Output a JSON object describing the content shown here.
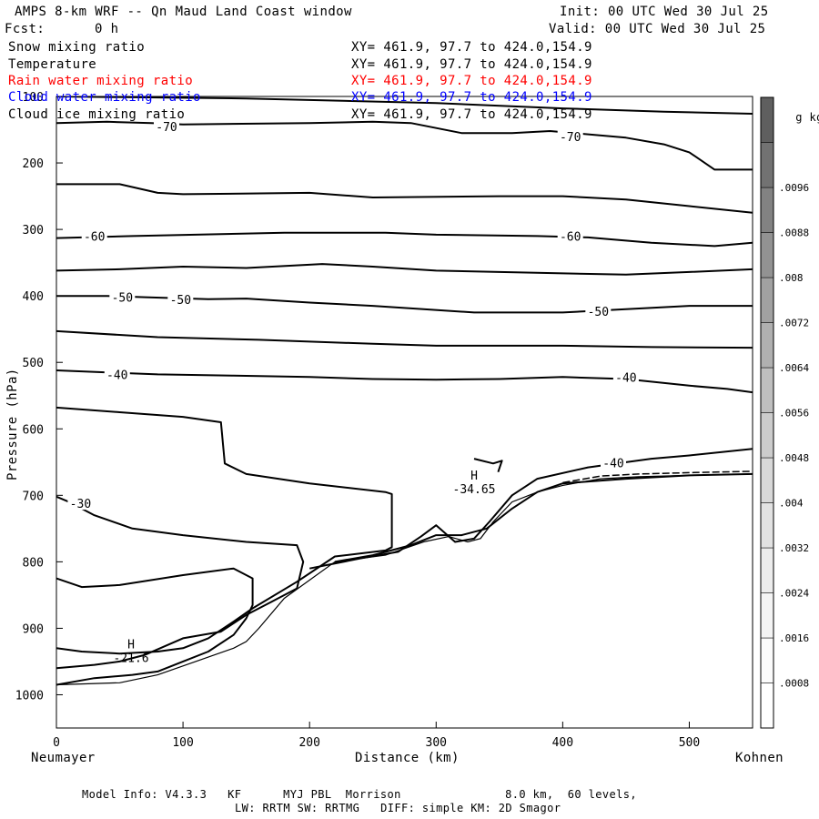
{
  "header": {
    "title": "AMPS 8-km WRF -- Qn Maud Land Coast window",
    "init": "Init: 00 UTC Wed 30 Jul 25",
    "fcst_label": "Fcst:",
    "fcst_value": "0 h",
    "valid": "Valid: 00 UTC Wed 30 Jul 25"
  },
  "fields": [
    {
      "name": "Snow mixing ratio",
      "xy": "XY= 461.9, 97.7 to 424.0,154.9",
      "color": "#000000"
    },
    {
      "name": "Temperature",
      "xy": "XY= 461.9, 97.7 to 424.0,154.9",
      "color": "#000000"
    },
    {
      "name": "Rain water mixing ratio",
      "xy": "XY= 461.9, 97.7 to 424.0,154.9",
      "color": "#ff0000"
    },
    {
      "name": "Cloud water mixing ratio",
      "xy": "XY= 461.9, 97.7 to 424.0,154.9",
      "color": "#0000ff"
    },
    {
      "name": "Cloud ice mixing ratio",
      "xy": "XY= 461.9, 97.7 to 424.0,154.9",
      "color": "#000000"
    }
  ],
  "footer": {
    "line1": "Model Info: V4.3.3   KF      MYJ PBL  Morrison               8.0 km,  60 levels,",
    "line2": "LW: RRTM SW: RRTMG   DIFF: simple KM: 2D Smagor"
  },
  "chart_data": {
    "type": "contour",
    "xlabel": "Distance (km)",
    "ylabel": "Pressure (hPa)",
    "x_left_label": "Neumayer",
    "x_right_label": "Kohnen",
    "xlim": [
      0,
      550
    ],
    "ylim": [
      1050,
      100
    ],
    "x_ticks": [
      0,
      100,
      200,
      300,
      400,
      500
    ],
    "y_ticks": [
      100,
      200,
      300,
      400,
      500,
      600,
      700,
      800,
      900,
      1000
    ],
    "colorbar": {
      "unit": "g kg",
      "unit_exp": "-1",
      "labels": [
        ".0008",
        ".0016",
        ".0024",
        ".0032",
        ".004",
        ".0048",
        ".0056",
        ".0064",
        ".0072",
        ".008",
        ".0088",
        ".0096"
      ],
      "shades": [
        "#ffffff",
        "#fbfbfb",
        "#f4f4f4",
        "#ececec",
        "#e2e2e2",
        "#d8d8d8",
        "#cccccc",
        "#bfbfbf",
        "#b0b0b0",
        "#a1a1a1",
        "#929292",
        "#828282",
        "#727272",
        "#5f5f5f"
      ]
    },
    "contour_labels": [
      {
        "text": "-70",
        "x": 87,
        "p": 145
      },
      {
        "text": "-70",
        "x": 406,
        "p": 160
      },
      {
        "text": "-60",
        "x": 30,
        "p": 310
      },
      {
        "text": "-60",
        "x": 406,
        "p": 310
      },
      {
        "text": "-50",
        "x": 52,
        "p": 402
      },
      {
        "text": "-50",
        "x": 98,
        "p": 405
      },
      {
        "text": "-50",
        "x": 428,
        "p": 423
      },
      {
        "text": "-40",
        "x": 48,
        "p": 518
      },
      {
        "text": "-40",
        "x": 450,
        "p": 522
      },
      {
        "text": "-40",
        "x": 440,
        "p": 651
      },
      {
        "text": "-30",
        "x": 19,
        "p": 712
      }
    ],
    "extrema": [
      {
        "label": "H",
        "value": "-21.6",
        "x": 59,
        "p": 937
      },
      {
        "label": "H",
        "value": "-34.65",
        "x": 330,
        "p": 683
      }
    ],
    "contour_lines": [
      {
        "level": null,
        "points": [
          [
            0,
            100
          ],
          [
            150,
            103
          ],
          [
            300,
            110
          ],
          [
            400,
            118
          ],
          [
            480,
            123
          ],
          [
            550,
            126
          ]
        ]
      },
      {
        "level": -70,
        "points": [
          [
            0,
            140
          ],
          [
            40,
            138
          ],
          [
            75,
            140
          ],
          [
            100,
            142
          ],
          [
            200,
            140
          ],
          [
            250,
            138
          ],
          [
            280,
            140
          ],
          [
            320,
            155
          ],
          [
            360,
            155
          ],
          [
            390,
            152
          ],
          [
            450,
            162
          ],
          [
            480,
            172
          ],
          [
            500,
            184
          ],
          [
            520,
            210
          ],
          [
            550,
            210
          ]
        ]
      },
      {
        "level": null,
        "points": [
          [
            0,
            232
          ],
          [
            50,
            232
          ],
          [
            80,
            245
          ],
          [
            100,
            247
          ],
          [
            200,
            245
          ],
          [
            250,
            252
          ],
          [
            350,
            250
          ],
          [
            400,
            250
          ],
          [
            450,
            255
          ],
          [
            500,
            265
          ],
          [
            550,
            275
          ]
        ]
      },
      {
        "level": -60,
        "points": [
          [
            0,
            313
          ],
          [
            60,
            310
          ],
          [
            110,
            308
          ],
          [
            180,
            305
          ],
          [
            260,
            305
          ],
          [
            300,
            308
          ],
          [
            380,
            310
          ],
          [
            420,
            312
          ],
          [
            470,
            320
          ],
          [
            520,
            325
          ],
          [
            550,
            320
          ]
        ]
      },
      {
        "level": null,
        "points": [
          [
            0,
            362
          ],
          [
            50,
            360
          ],
          [
            100,
            356
          ],
          [
            150,
            358
          ],
          [
            210,
            352
          ],
          [
            250,
            356
          ],
          [
            300,
            362
          ],
          [
            350,
            364
          ],
          [
            450,
            368
          ],
          [
            500,
            364
          ],
          [
            550,
            360
          ]
        ]
      },
      {
        "level": -50,
        "points": [
          [
            0,
            400
          ],
          [
            40,
            400
          ],
          [
            70,
            402
          ],
          [
            120,
            405
          ],
          [
            150,
            404
          ],
          [
            200,
            410
          ],
          [
            250,
            415
          ],
          [
            290,
            420
          ],
          [
            330,
            425
          ],
          [
            400,
            425
          ],
          [
            450,
            420
          ],
          [
            500,
            415
          ],
          [
            550,
            415
          ]
        ]
      },
      {
        "level": null,
        "points": [
          [
            0,
            453
          ],
          [
            80,
            462
          ],
          [
            160,
            466
          ],
          [
            250,
            472
          ],
          [
            300,
            475
          ],
          [
            400,
            475
          ],
          [
            470,
            477
          ],
          [
            550,
            478
          ]
        ]
      },
      {
        "level": -40,
        "points": [
          [
            0,
            512
          ],
          [
            40,
            515
          ],
          [
            80,
            518
          ],
          [
            140,
            520
          ],
          [
            200,
            522
          ],
          [
            250,
            525
          ],
          [
            300,
            526
          ],
          [
            350,
            525
          ],
          [
            400,
            522
          ],
          [
            450,
            525
          ],
          [
            500,
            535
          ],
          [
            530,
            540
          ],
          [
            550,
            545
          ]
        ]
      },
      {
        "level": null,
        "points": [
          [
            0,
            568
          ],
          [
            50,
            575
          ],
          [
            100,
            582
          ],
          [
            130,
            590
          ],
          [
            133,
            652
          ],
          [
            150,
            668
          ],
          [
            200,
            682
          ],
          [
            260,
            695
          ],
          [
            265,
            698
          ],
          [
            265,
            778
          ],
          [
            260,
            783
          ],
          [
            220,
            792
          ],
          [
            190,
            830
          ],
          [
            155,
            870
          ],
          [
            140,
            890
          ],
          [
            120,
            915
          ],
          [
            100,
            930
          ],
          [
            80,
            935
          ],
          [
            50,
            938
          ],
          [
            20,
            935
          ],
          [
            0,
            930
          ]
        ]
      },
      {
        "level": -30,
        "points": [
          [
            0,
            702
          ],
          [
            10,
            710
          ],
          [
            30,
            730
          ],
          [
            60,
            750
          ],
          [
            100,
            760
          ],
          [
            150,
            770
          ],
          [
            190,
            775
          ],
          [
            195,
            800
          ],
          [
            190,
            840
          ],
          [
            170,
            860
          ],
          [
            150,
            880
          ],
          [
            130,
            905
          ],
          [
            100,
            915
          ],
          [
            70,
            940
          ],
          [
            50,
            950
          ],
          [
            30,
            955
          ],
          [
            0,
            960
          ]
        ]
      },
      {
        "level": null,
        "points": [
          [
            0,
            825
          ],
          [
            20,
            838
          ],
          [
            50,
            835
          ],
          [
            100,
            820
          ],
          [
            140,
            810
          ],
          [
            155,
            825
          ],
          [
            155,
            865
          ],
          [
            150,
            885
          ],
          [
            140,
            910
          ],
          [
            120,
            935
          ],
          [
            100,
            950
          ],
          [
            80,
            965
          ],
          [
            60,
            970
          ],
          [
            30,
            975
          ],
          [
            0,
            985
          ]
        ]
      },
      {
        "level": null,
        "points": [
          [
            330,
            645
          ],
          [
            345,
            652
          ],
          [
            352,
            648
          ],
          [
            349,
            665
          ]
        ]
      },
      {
        "level": null,
        "points": [
          [
            220,
            800
          ],
          [
            250,
            790
          ],
          [
            280,
            775
          ],
          [
            300,
            760
          ],
          [
            320,
            760
          ],
          [
            340,
            750
          ],
          [
            360,
            720
          ],
          [
            380,
            695
          ],
          [
            400,
            682
          ],
          [
            450,
            675
          ],
          [
            500,
            670
          ],
          [
            550,
            668
          ]
        ]
      },
      {
        "level": -40,
        "points": [
          [
            200,
            810
          ],
          [
            240,
            795
          ],
          [
            270,
            785
          ],
          [
            288,
            762
          ],
          [
            300,
            745
          ],
          [
            315,
            770
          ],
          [
            330,
            765
          ],
          [
            342,
            740
          ],
          [
            360,
            700
          ],
          [
            380,
            675
          ],
          [
            420,
            658
          ],
          [
            470,
            645
          ],
          [
            500,
            640
          ],
          [
            550,
            630
          ]
        ]
      }
    ],
    "terrain": [
      [
        0,
        985
      ],
      [
        50,
        982
      ],
      [
        80,
        970
      ],
      [
        110,
        950
      ],
      [
        140,
        930
      ],
      [
        150,
        920
      ],
      [
        160,
        900
      ],
      [
        180,
        855
      ],
      [
        220,
        800
      ],
      [
        260,
        790
      ],
      [
        290,
        770
      ],
      [
        310,
        762
      ],
      [
        325,
        770
      ],
      [
        335,
        765
      ],
      [
        345,
        740
      ],
      [
        360,
        710
      ],
      [
        380,
        695
      ],
      [
        400,
        685
      ],
      [
        430,
        675
      ],
      [
        460,
        672
      ],
      [
        500,
        670
      ],
      [
        550,
        668
      ]
    ]
  }
}
